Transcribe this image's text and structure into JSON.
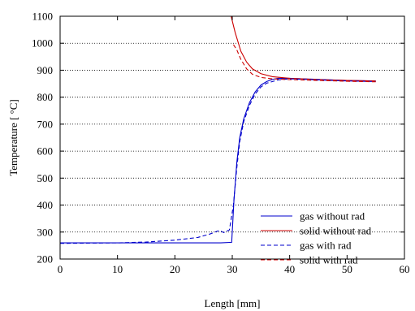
{
  "chart_data": {
    "type": "line",
    "xlabel": "Length [mm]",
    "ylabel": "Temperature [  °C]",
    "xlim": [
      0,
      60
    ],
    "ylim": [
      200,
      1100
    ],
    "xticks": [
      0,
      10,
      20,
      30,
      40,
      50,
      60
    ],
    "yticks": [
      200,
      300,
      400,
      500,
      600,
      700,
      800,
      900,
      1000,
      1100
    ],
    "xtick_labels": [
      "0",
      "10",
      "20",
      "30",
      "40",
      "50",
      "60"
    ],
    "ytick_labels": [
      "200",
      "300",
      "400",
      "500",
      "600",
      "700",
      "800",
      "900",
      "1000",
      "1100"
    ],
    "grid": "horizontal dotted",
    "legend_position": "bottom-right",
    "series": [
      {
        "name": "gas without rad",
        "color": "#0000cc",
        "dash": "solid",
        "x": [
          0,
          10,
          20,
          28,
          29.9,
          30.3,
          30.8,
          31.3,
          32,
          33,
          34,
          35,
          36,
          37,
          38,
          40,
          45,
          50,
          55
        ],
        "y": [
          260,
          260,
          260,
          260,
          262,
          420,
          560,
          650,
          720,
          780,
          820,
          845,
          858,
          866,
          870,
          870,
          866,
          862,
          860
        ]
      },
      {
        "name": "solid without rad",
        "color": "#cc0000",
        "dash": "solid",
        "x": [
          29.8,
          30.5,
          31.5,
          32.5,
          33.5,
          35,
          37,
          40,
          45,
          50,
          55
        ],
        "y": [
          1100,
          1040,
          970,
          930,
          905,
          887,
          876,
          870,
          865,
          862,
          860
        ]
      },
      {
        "name": "gas with rad",
        "color": "#0000cc",
        "dash": "dashed",
        "x": [
          0,
          10,
          15,
          20,
          24,
          26,
          27,
          27.8,
          28.5,
          29.5,
          30.2,
          30.8,
          31.3,
          32,
          33,
          34,
          35,
          36,
          38,
          40,
          45,
          50,
          55
        ],
        "y": [
          258,
          260,
          263,
          270,
          280,
          292,
          300,
          306,
          298,
          308,
          400,
          540,
          635,
          710,
          770,
          812,
          838,
          852,
          864,
          868,
          864,
          860,
          858
        ]
      },
      {
        "name": "solid with rad",
        "color": "#cc0000",
        "dash": "dashed",
        "x": [
          30.2,
          30.8,
          31.5,
          32.5,
          33.5,
          35,
          37,
          40,
          45,
          50,
          55
        ],
        "y": [
          995,
          975,
          940,
          905,
          885,
          873,
          868,
          865,
          862,
          859,
          857
        ]
      }
    ]
  }
}
